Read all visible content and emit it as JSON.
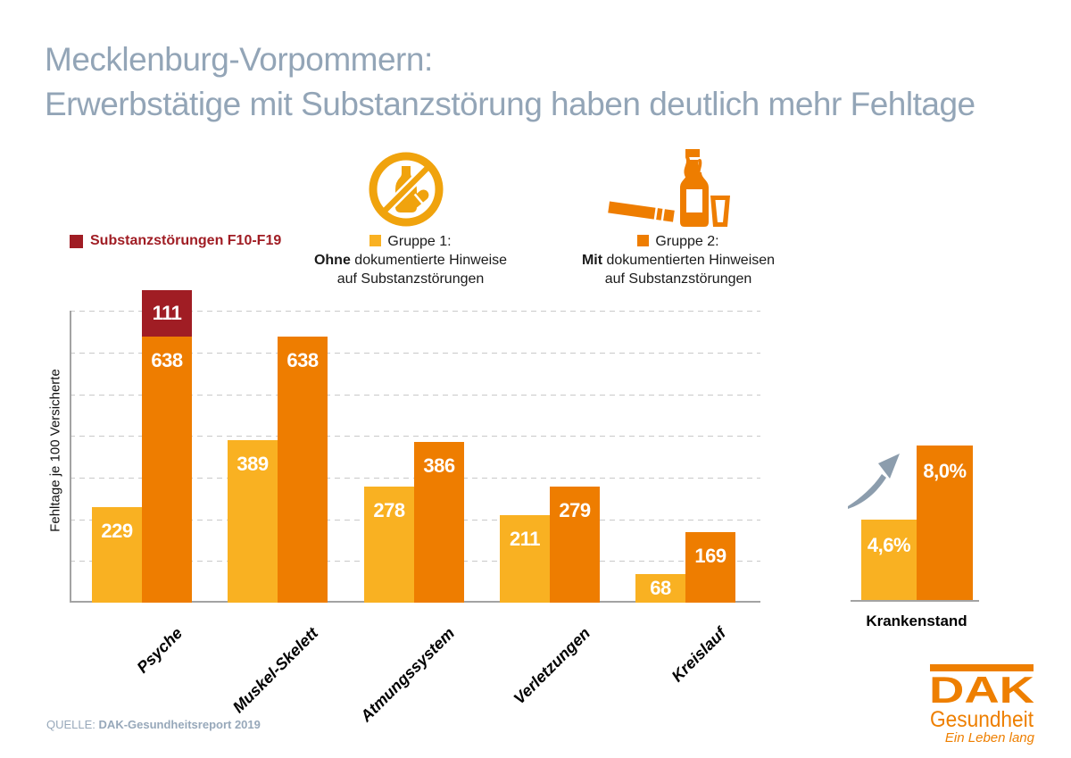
{
  "title": {
    "line1": "Mecklenburg-Vorpommern:",
    "line2": "Erwerbstätige mit Substanzstörung haben deutlich mehr Fehltage"
  },
  "legend": {
    "substance": {
      "label": "Substanzstörungen F10-F19",
      "color": "#A01D24"
    },
    "group1": {
      "name": "Gruppe 1:",
      "bold_word": "Ohne",
      "line2_rest": " dokumentierte Hinweise",
      "line3": "auf Substanzstörungen",
      "color": "#F9B122",
      "icon": "no-alcohol-pills-icon",
      "icon_color": "#F0A30D"
    },
    "group2": {
      "name": "Gruppe 2:",
      "bold_word": "Mit",
      "line2_rest": " dokumentierten Hinweisen",
      "line3": "auf Substanzstörungen",
      "color": "#EE7D00",
      "icon": "cigarette-bottle-glass-icon",
      "icon_color": "#EE7D00"
    }
  },
  "chart_data": {
    "type": "bar",
    "title": "",
    "ylabel": "Fehltage je 100 Versicherte",
    "categories": [
      "Psyche",
      "Muskel-Skelett",
      "Atmungssystem",
      "Verletzungen",
      "Kreislauf"
    ],
    "series": [
      {
        "name": "Gruppe 1: Ohne dokumentierte Hinweise auf Substanzstörungen",
        "color": "#F9B122",
        "values": [
          229,
          389,
          278,
          211,
          68
        ]
      },
      {
        "name": "Gruppe 2: Mit dokumentierten Hinweisen auf Substanzstörungen",
        "color": "#EE7D00",
        "values": [
          638,
          638,
          386,
          279,
          169
        ]
      },
      {
        "name": "Substanzstörungen F10-F19 (zusätzlich, gestapelt auf Gruppe 2)",
        "color": "#A01D24",
        "values": [
          111,
          null,
          null,
          null,
          null
        ]
      }
    ],
    "ylim": [
      0,
      760
    ],
    "grid": "dashed horizontal lines every 100",
    "legend_position": "top"
  },
  "mini_chart": {
    "type": "bar",
    "title": "Krankenstand",
    "labels": [
      "4,6%",
      "8,0%"
    ],
    "values_percent": [
      4.6,
      8.0
    ],
    "colors": [
      "#F9B122",
      "#EE7D00"
    ],
    "annotation": "trend-up-arrow"
  },
  "source": {
    "prefix": "QUELLE:",
    "text": "DAK-Gesundheitsreport 2019"
  },
  "logo": {
    "brand": "DAK",
    "sub": "Gesundheit",
    "slogan": "Ein Leben lang"
  },
  "colors": {
    "title_blue": "#93A5B7",
    "group1_amber": "#F9B122",
    "group2_orange": "#EE7D00",
    "substance_red": "#A01D24",
    "axis_gray": "#A3A3A3",
    "gridline_gray": "#C9C9C9",
    "arrow_gray_blue": "#8C9DAD",
    "dak_orange": "#EE7F00"
  }
}
